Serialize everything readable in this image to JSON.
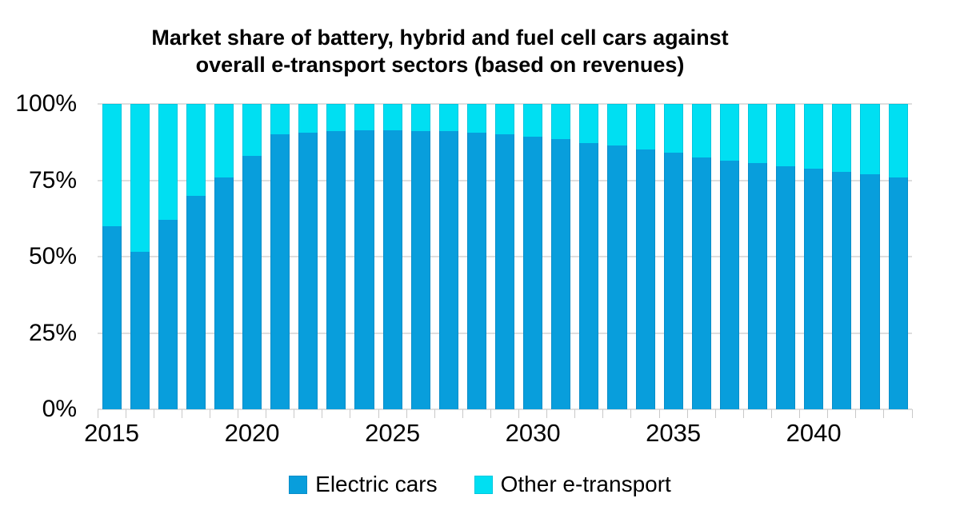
{
  "title": {
    "line1": "Market share of battery, hybrid and fuel cell cars against",
    "line2": "overall e-transport sectors (based on revenues)"
  },
  "chart_data": {
    "type": "bar",
    "stacked": true,
    "normalized_100_percent": true,
    "title": "Market share of battery, hybrid and fuel cell cars against overall e-transport sectors (based on revenues)",
    "categories": [
      2015,
      2016,
      2017,
      2018,
      2019,
      2020,
      2021,
      2022,
      2023,
      2024,
      2025,
      2026,
      2027,
      2028,
      2029,
      2030,
      2031,
      2032,
      2033,
      2034,
      2035,
      2036,
      2037,
      2038,
      2039,
      2040,
      2041,
      2042,
      2043
    ],
    "series": [
      {
        "name": "Electric cars",
        "color": "#089edc",
        "values": [
          60,
          51.5,
          62,
          70,
          76,
          83,
          90,
          90.7,
          91,
          91.4,
          91.4,
          91.2,
          91,
          90.5,
          90,
          89.4,
          88.5,
          87.3,
          86.3,
          85,
          84,
          82.5,
          81.5,
          80.6,
          79.7,
          78.8,
          77.7,
          76.9,
          75.8
        ]
      },
      {
        "name": "Other e-transport",
        "color": "#00dff2",
        "values": [
          40,
          48.5,
          38,
          30,
          24,
          17,
          10,
          9.3,
          9,
          8.6,
          8.6,
          8.8,
          9,
          9.5,
          10,
          10.6,
          11.5,
          12.7,
          13.7,
          15,
          16,
          17.5,
          18.5,
          19.4,
          20.3,
          21.2,
          22.3,
          23.1,
          24.2
        ]
      }
    ],
    "xlabel": "",
    "ylabel": "",
    "ylim": [
      0,
      100
    ],
    "y_ticks": [
      "0%",
      "25%",
      "50%",
      "75%",
      "100%"
    ],
    "y_tick_values": [
      0,
      25,
      50,
      75,
      100
    ],
    "x_tick_labels": [
      "2015",
      "2020",
      "2025",
      "2030",
      "2035",
      "2040"
    ],
    "grid": "horizontal",
    "gridline_color": "#dedede",
    "tick_color": "#c9c9c9",
    "legend_position": "bottom"
  }
}
